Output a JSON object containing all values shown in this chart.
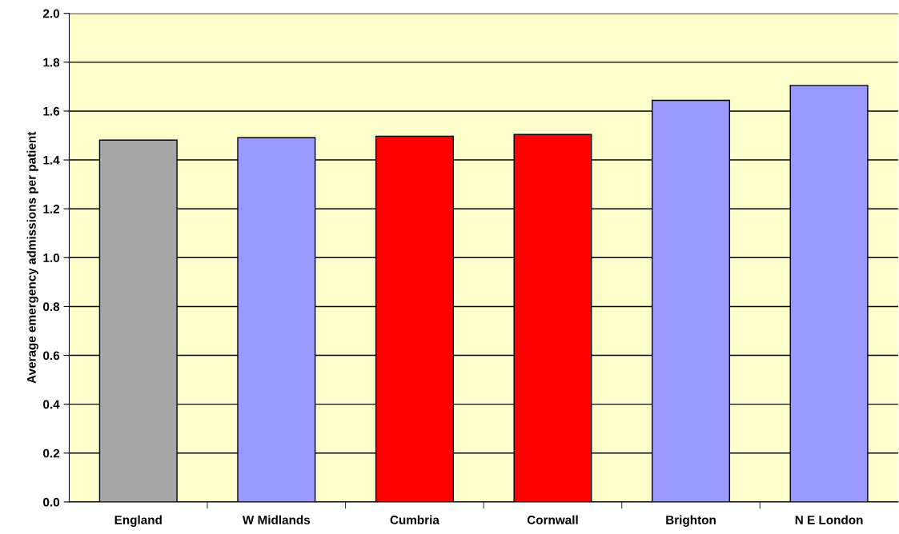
{
  "chart_data": {
    "type": "bar",
    "ylabel": "Average emergency admissions per patient",
    "categories": [
      "England",
      "W Midlands",
      "Cumbria",
      "Cornwall",
      "Brighton",
      "N E London"
    ],
    "values": [
      1.481,
      1.491,
      1.497,
      1.504,
      1.644,
      1.705
    ],
    "colors": [
      "#a6a6a6",
      "#9999ff",
      "#ff0000",
      "#ff0000",
      "#9999ff",
      "#9999ff"
    ],
    "ylim": [
      0,
      2.0
    ],
    "yticks": [
      {
        "value": 0,
        "label": "0.0"
      },
      {
        "value": 0.2,
        "label": "0.2"
      },
      {
        "value": 0.4,
        "label": "0.4"
      },
      {
        "value": 0.6,
        "label": "0.6"
      },
      {
        "value": 0.8,
        "label": "0.8"
      },
      {
        "value": 1.0,
        "label": "1.0"
      },
      {
        "value": 1.2,
        "label": "1.2"
      },
      {
        "value": 1.4,
        "label": "1.4"
      },
      {
        "value": 1.6,
        "label": "1.6"
      },
      {
        "value": 1.8,
        "label": "1.8"
      },
      {
        "value": 2.0,
        "label": "2.0"
      }
    ],
    "grid": "y"
  }
}
